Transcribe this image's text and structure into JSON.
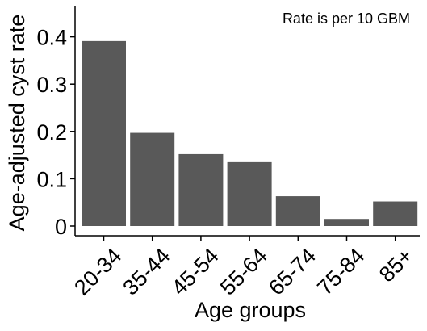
{
  "chart_data": {
    "type": "bar",
    "categories": [
      "20-34",
      "35-44",
      "45-54",
      "55-64",
      "65-74",
      "75-84",
      "85+"
    ],
    "values": [
      0.391,
      0.197,
      0.152,
      0.135,
      0.063,
      0.015,
      0.052
    ],
    "xlabel": "Age groups",
    "ylabel": "Age-adjusted cyst rate",
    "annotation": "Rate is per 10 GBM",
    "ylim": [
      0,
      0.42
    ],
    "yticks": [
      0,
      0.1,
      0.2,
      0.3,
      0.4
    ],
    "ytick_labels": [
      "0",
      "0.1",
      "0.2",
      "0.3",
      "0.4"
    ],
    "bar_color": "#595959",
    "grid": false
  }
}
